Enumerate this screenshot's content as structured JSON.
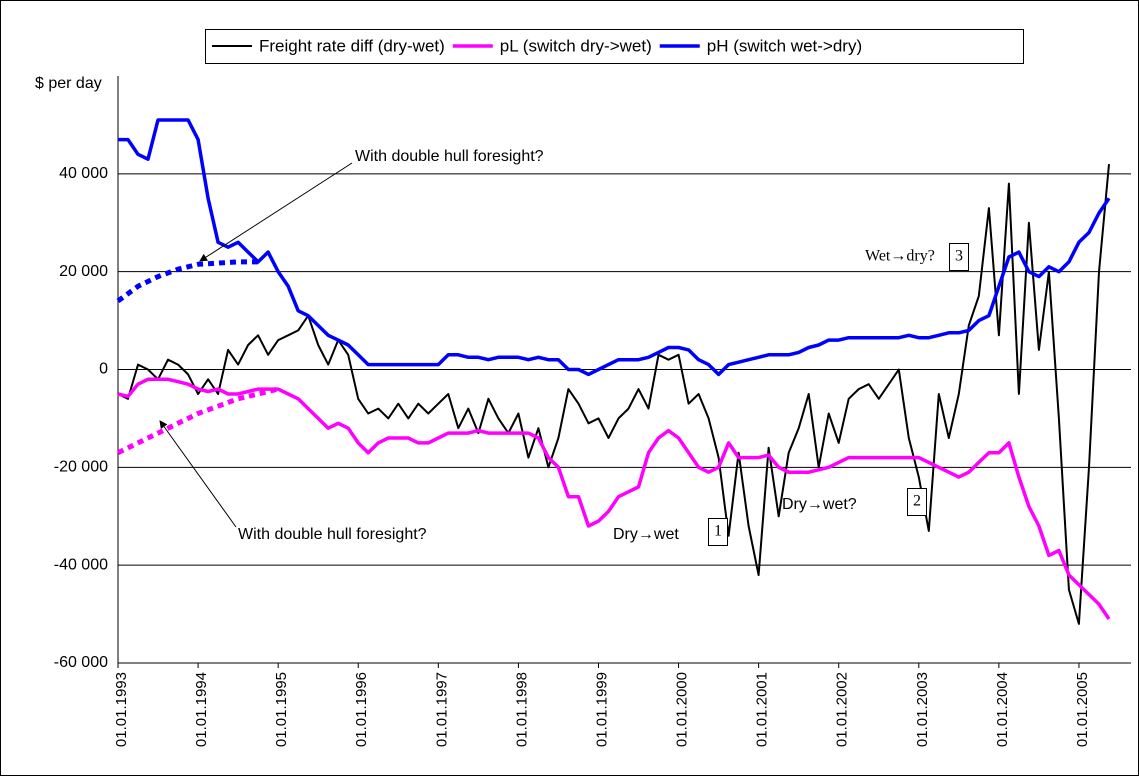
{
  "chart_data": {
    "type": "line",
    "y_label": "$ per day",
    "xlim": [
      1993,
      2005.65
    ],
    "ylim": [
      -60000,
      60000
    ],
    "xticks": [
      {
        "value": 1993,
        "label": "01.01.1993"
      },
      {
        "value": 1994,
        "label": "01.01.1994"
      },
      {
        "value": 1995,
        "label": "01.01.1995"
      },
      {
        "value": 1996,
        "label": "01.01.1996"
      },
      {
        "value": 1997,
        "label": "01.01.1997"
      },
      {
        "value": 1998,
        "label": "01.01.1998"
      },
      {
        "value": 1999,
        "label": "01.01.1999"
      },
      {
        "value": 2000,
        "label": "01.01.2000"
      },
      {
        "value": 2001,
        "label": "01.01.2001"
      },
      {
        "value": 2002,
        "label": "01.01.2002"
      },
      {
        "value": 2003,
        "label": "01.01.2003"
      },
      {
        "value": 2004,
        "label": "01.01.2004"
      },
      {
        "value": 2005,
        "label": "01.01.2005"
      }
    ],
    "yticks": [
      {
        "value": -60000,
        "label": "-60 000"
      },
      {
        "value": -40000,
        "label": "-40 000"
      },
      {
        "value": -20000,
        "label": "-20 000"
      },
      0,
      {
        "value": 20000,
        "label": "20 000"
      },
      {
        "value": 40000,
        "label": "40 000"
      }
    ],
    "grid": true,
    "x": [
      1993,
      1993.125,
      1993.25,
      1993.375,
      1993.5,
      1993.625,
      1993.75,
      1993.875,
      1994,
      1994.125,
      1994.25,
      1994.375,
      1994.5,
      1994.625,
      1994.75,
      1994.875,
      1995,
      1995.125,
      1995.25,
      1995.375,
      1995.5,
      1995.625,
      1995.75,
      1995.875,
      1996,
      1996.125,
      1996.25,
      1996.375,
      1996.5,
      1996.625,
      1996.75,
      1996.875,
      1997,
      1997.125,
      1997.25,
      1997.375,
      1997.5,
      1997.625,
      1997.75,
      1997.875,
      1998,
      1998.125,
      1998.25,
      1998.375,
      1998.5,
      1998.625,
      1998.75,
      1998.875,
      1999,
      1999.125,
      1999.25,
      1999.375,
      1999.5,
      1999.625,
      1999.75,
      1999.875,
      2000,
      2000.125,
      2000.25,
      2000.375,
      2000.5,
      2000.625,
      2000.75,
      2000.875,
      2001,
      2001.125,
      2001.25,
      2001.375,
      2001.5,
      2001.625,
      2001.75,
      2001.875,
      2002,
      2002.125,
      2002.25,
      2002.375,
      2002.5,
      2002.625,
      2002.75,
      2002.875,
      2003,
      2003.125,
      2003.25,
      2003.375,
      2003.5,
      2003.625,
      2003.75,
      2003.875,
      2004,
      2004.125,
      2004.25,
      2004.375,
      2004.5,
      2004.625,
      2004.75,
      2004.875,
      2005,
      2005.125,
      2005.25,
      2005.375
    ],
    "series": [
      {
        "name": "Freight rate diff (dry-wet)",
        "color": "#000000",
        "width": 2,
        "values": [
          -5000,
          -6000,
          1000,
          0,
          -2000,
          2000,
          1000,
          -1000,
          -5000,
          -2000,
          -5000,
          4000,
          1000,
          5000,
          7000,
          3000,
          6000,
          7000,
          8000,
          11000,
          5000,
          1000,
          6000,
          3000,
          -6000,
          -9000,
          -8000,
          -10000,
          -7000,
          -10000,
          -7000,
          -9000,
          -7000,
          -5000,
          -12000,
          -8000,
          -13000,
          -6000,
          -10000,
          -13000,
          -9000,
          -18000,
          -12000,
          -20000,
          -14000,
          -4000,
          -7000,
          -11000,
          -10000,
          -14000,
          -10000,
          -8000,
          -4000,
          -8000,
          3000,
          2000,
          3000,
          -7000,
          -5000,
          -10000,
          -18000,
          -34000,
          -17000,
          -32000,
          -42000,
          -16000,
          -30000,
          -17000,
          -12000,
          -5000,
          -20000,
          -9000,
          -15000,
          -6000,
          -4000,
          -3000,
          -6000,
          -3000,
          0,
          -14000,
          -22000,
          -33000,
          -5000,
          -14000,
          -5000,
          9000,
          15000,
          33000,
          7000,
          38000,
          -5000,
          30000,
          4000,
          20000,
          -10000,
          -45000,
          -52000,
          -20000,
          20000,
          42000
        ]
      },
      {
        "name": "pL (switch dry->wet)",
        "color": "#ff00ff",
        "width": 3.5,
        "values": [
          -5000,
          -5500,
          -3000,
          -2000,
          -2000,
          -2000,
          -2500,
          -3000,
          -4000,
          -4500,
          -4000,
          -5000,
          -5000,
          -4500,
          -4000,
          -4000,
          -4000,
          -5000,
          -6000,
          -8000,
          -10000,
          -12000,
          -11000,
          -12000,
          -15000,
          -17000,
          -15000,
          -14000,
          -14000,
          -14000,
          -15000,
          -15000,
          -14000,
          -13000,
          -13000,
          -13000,
          -12500,
          -13000,
          -13000,
          -13000,
          -13000,
          -13000,
          -14000,
          -18000,
          -20000,
          -26000,
          -26000,
          -32000,
          -31000,
          -29000,
          -26000,
          -25000,
          -24000,
          -17000,
          -14000,
          -12500,
          -14000,
          -17000,
          -20000,
          -21000,
          -20000,
          -15000,
          -18000,
          -18000,
          -18000,
          -17500,
          -20000,
          -21000,
          -21000,
          -21000,
          -20500,
          -20000,
          -19000,
          -18000,
          -18000,
          -18000,
          -18000,
          -18000,
          -18000,
          -18000,
          -18000,
          -19000,
          -20000,
          -21000,
          -22000,
          -21000,
          -19000,
          -17000,
          -17000,
          -15000,
          -22000,
          -28000,
          -32000,
          -38000,
          -37000,
          -42000,
          -44000,
          -46000,
          -48000,
          -51000
        ]
      },
      {
        "name": "pH (switch wet->dry)",
        "color": "#0000ff",
        "width": 3.5,
        "values": [
          47000,
          47000,
          44000,
          43000,
          51000,
          51000,
          51000,
          51000,
          47000,
          35000,
          26000,
          25000,
          26000,
          24000,
          22000,
          24000,
          20000,
          17000,
          12000,
          11000,
          9000,
          7000,
          6000,
          5000,
          3000,
          1000,
          1000,
          1000,
          1000,
          1000,
          1000,
          1000,
          1000,
          3000,
          3000,
          2500,
          2500,
          2000,
          2500,
          2500,
          2500,
          2000,
          2500,
          2000,
          2000,
          0,
          0,
          -1000,
          0,
          1000,
          2000,
          2000,
          2000,
          2500,
          3500,
          4500,
          4500,
          4000,
          2000,
          1000,
          -1000,
          1000,
          1500,
          2000,
          2500,
          3000,
          3000,
          3000,
          3500,
          4500,
          5000,
          6000,
          6000,
          6500,
          6500,
          6500,
          6500,
          6500,
          6500,
          7000,
          6500,
          6500,
          7000,
          7500,
          7500,
          8000,
          10000,
          11000,
          17000,
          23000,
          24000,
          20000,
          19000,
          21000,
          20000,
          22000,
          26000,
          28000,
          32000,
          35000
        ]
      },
      {
        "color": "#0000ff",
        "width": 5,
        "dashed": true,
        "x": [
          1993,
          1993.25,
          1993.5,
          1993.75,
          1994,
          1994.5,
          1994.8
        ],
        "values": [
          14000,
          17000,
          19000,
          20500,
          21500,
          22000,
          22000
        ]
      },
      {
        "color": "#ff00ff",
        "width": 5,
        "dashed": true,
        "x": [
          1993,
          1993.5,
          1994,
          1994.5,
          1995
        ],
        "values": [
          -17000,
          -13000,
          -9000,
          -6000,
          -4000
        ]
      }
    ],
    "annotations": [
      {
        "text": "With double hull foresight?"
      },
      {
        "text": "With double hull foresight?"
      },
      {
        "text": "Dry→wet",
        "box": "1"
      },
      {
        "text": "Dry→wet?",
        "box": "2"
      },
      {
        "text": "Wet→dry?",
        "box": "3"
      }
    ]
  }
}
